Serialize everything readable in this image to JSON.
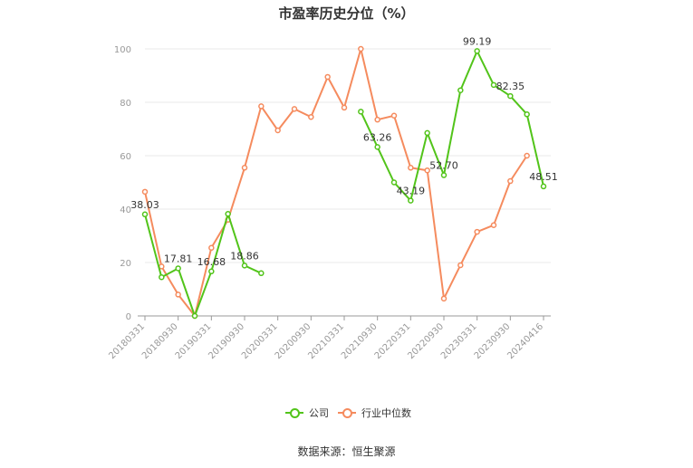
{
  "chart_data": {
    "type": "line",
    "title": "市盈率历史分位（%）",
    "x": [
      "20180331",
      "20180630",
      "20180930",
      "20181231",
      "20190331",
      "20190630",
      "20190930",
      "20191231",
      "20200331",
      "20200630",
      "20200930",
      "20201231",
      "20210331",
      "20210630",
      "20210930",
      "20211231",
      "20220331",
      "20220630",
      "20220930",
      "20221231",
      "20230331",
      "20230630",
      "20230930",
      "20231231",
      "20240416"
    ],
    "xticks": [
      "20180331",
      "20180930",
      "20190331",
      "20190930",
      "20200331",
      "20200930",
      "20210331",
      "20210930",
      "20220331",
      "20220930",
      "20230331",
      "20230930",
      "20240416"
    ],
    "ylim": [
      0,
      100
    ],
    "yticks": [
      0,
      20,
      40,
      60,
      80,
      100
    ],
    "grid": true,
    "legend_position": "bottom-center",
    "series": [
      {
        "name": "公司",
        "color": "#52c41a",
        "values": [
          38.03,
          14.5,
          17.81,
          0,
          16.68,
          38.2,
          18.86,
          16.0,
          null,
          null,
          null,
          null,
          null,
          76.5,
          63.26,
          50.0,
          43.19,
          68.5,
          52.7,
          84.5,
          99.19,
          86.5,
          82.35,
          75.5,
          48.51
        ],
        "labels": {
          "0": "38.03",
          "2": "17.81",
          "4": "16.68",
          "6": "18.86",
          "14": "63.26",
          "16": "43.19",
          "18": "52.70",
          "20": "99.19",
          "22": "82.35",
          "24": "48.51"
        }
      },
      {
        "name": "行业中位数",
        "color": "#f58b5e",
        "values": [
          46.5,
          18.5,
          8.0,
          0,
          25.5,
          36.0,
          55.5,
          78.5,
          69.5,
          77.5,
          74.5,
          89.5,
          78.0,
          100,
          73.5,
          75.0,
          55.5,
          54.5,
          6.5,
          19.0,
          31.5,
          34.0,
          50.5,
          60.0,
          null
        ]
      }
    ]
  },
  "source": "数据来源：恒生聚源"
}
